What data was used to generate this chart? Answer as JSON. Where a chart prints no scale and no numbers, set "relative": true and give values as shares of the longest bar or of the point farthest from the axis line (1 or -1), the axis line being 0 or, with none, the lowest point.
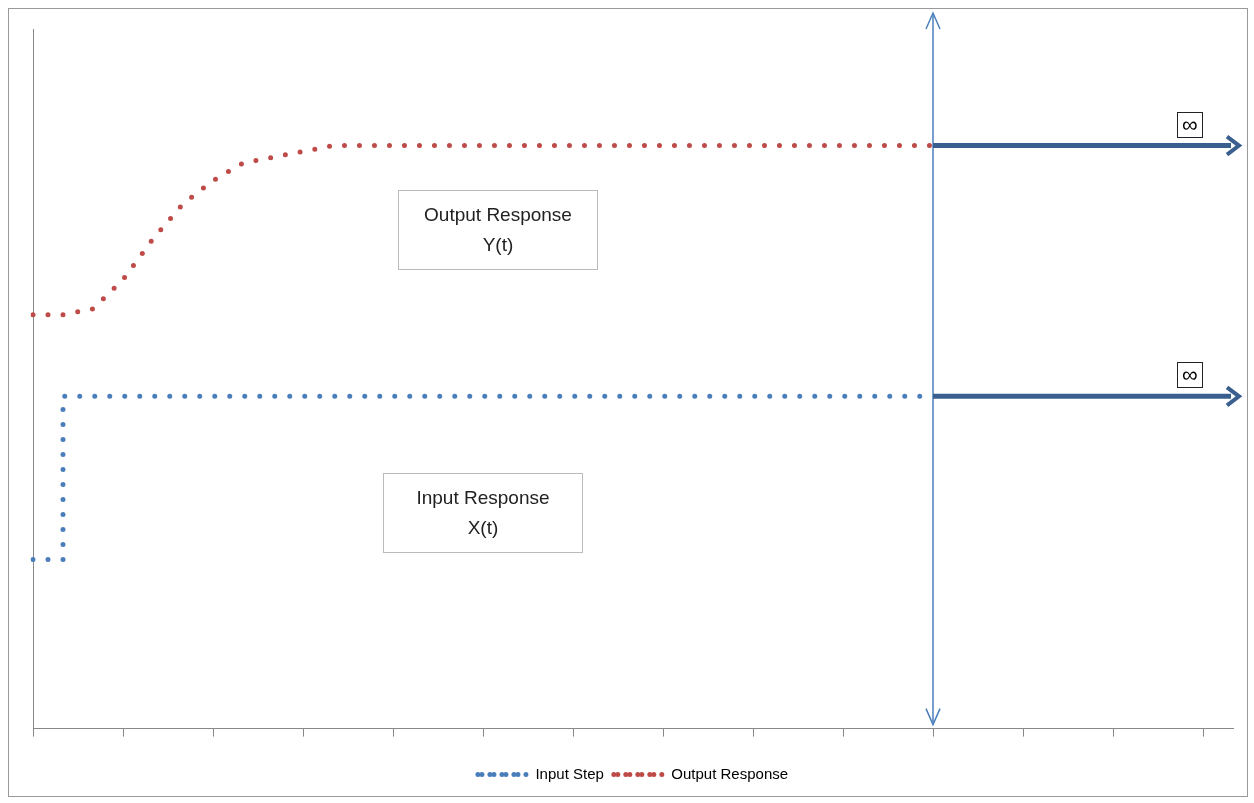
{
  "chart_data": {
    "type": "line",
    "relative": true,
    "legend": "bottom",
    "grid": false,
    "line_style": "dotted",
    "marker": "none",
    "categories": [
      null,
      null,
      null,
      null,
      null,
      null,
      null,
      null,
      null,
      null,
      null,
      null,
      null,
      null,
      null,
      null,
      null,
      null,
      null,
      null,
      null,
      null,
      null,
      null,
      null,
      null,
      null,
      null,
      null,
      null,
      null,
      null,
      null,
      null,
      null,
      null,
      null,
      null,
      null,
      null,
      null
    ],
    "series": [
      {
        "name": "Input Step",
        "type": "step",
        "color": "#4a7ebb",
        "values": [
          0.29,
          0.57,
          0.57,
          0.57,
          0.57,
          0.57,
          0.57,
          0.57,
          0.57,
          0.57,
          0.57,
          0.57,
          0.57,
          0.57,
          0.57,
          0.57,
          0.57,
          0.57,
          0.57,
          0.57,
          0.57,
          0.57,
          0.57,
          0.57,
          0.57,
          0.57,
          0.57,
          0.57,
          0.57,
          0.57,
          0.57,
          null,
          null,
          null,
          null,
          null,
          null,
          null,
          null,
          null,
          null
        ]
      },
      {
        "name": "Output Response",
        "type": "line",
        "color": "#be4b48",
        "values": [
          0.71,
          0.71,
          0.72,
          0.77,
          0.84,
          0.9,
          0.94,
          0.97,
          0.98,
          0.99,
          1,
          1,
          1,
          1,
          1,
          1,
          1,
          1,
          1,
          1,
          1,
          1,
          1,
          1,
          1,
          1,
          1,
          1,
          1,
          1,
          1,
          null,
          null,
          null,
          null,
          null,
          null,
          null,
          null,
          null,
          null
        ]
      }
    ],
    "annotations": [
      "Output Response\nY(t)",
      "Input Response\nX(t)",
      "∞",
      "∞"
    ]
  }
}
